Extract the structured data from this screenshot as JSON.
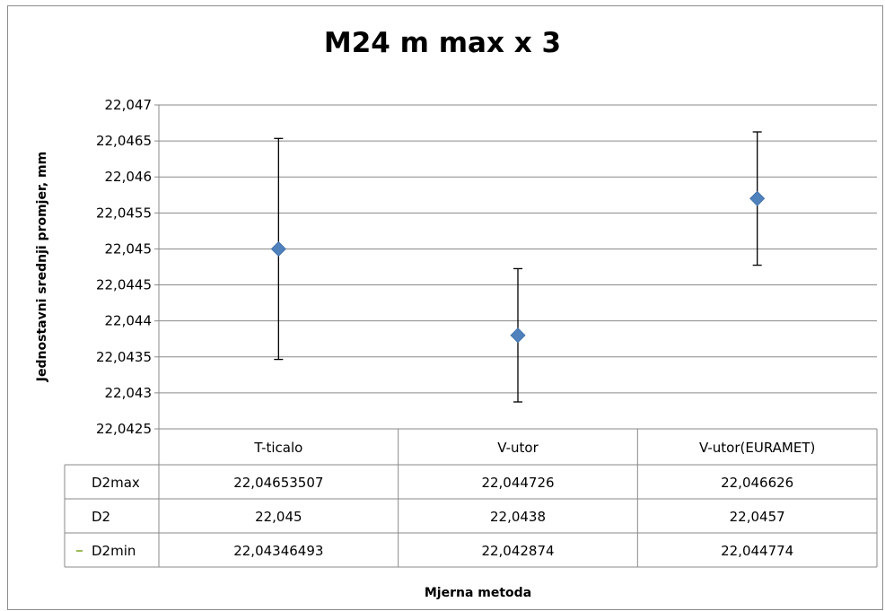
{
  "chart_data": {
    "type": "scatter",
    "title": "M24 m max x 3",
    "ylabel": "Jednostavni srednji promjer, mm",
    "xlabel": "Mjerna metoda",
    "categories": [
      "T-ticalo",
      "V-utor",
      "V-utor(EURAMET)"
    ],
    "y_ticks": [
      "22,047",
      "22,0465",
      "22,046",
      "22,0455",
      "22,045",
      "22,0445",
      "22,044",
      "22,0435",
      "22,043",
      "22,0425"
    ],
    "ylim": [
      22.0425,
      22.047
    ],
    "grid": true,
    "series": [
      {
        "values": [
          22.045,
          22.0438,
          22.0457
        ],
        "error_high": [
          22.04653507,
          22.044726,
          22.046626
        ],
        "error_low": [
          22.04346493,
          22.042874,
          22.044774
        ]
      }
    ],
    "marker_color": "#4f81bd",
    "data_table": {
      "rows": [
        {
          "name": "D2max",
          "cells": [
            "22,04653507",
            "22,044726",
            "22,046626"
          ]
        },
        {
          "name": "D2",
          "cells": [
            "22,045",
            "22,0438",
            "22,0457"
          ]
        },
        {
          "name": "D2min",
          "cells": [
            "22,04346493",
            "22,042874",
            "22,044774"
          ]
        }
      ]
    }
  }
}
